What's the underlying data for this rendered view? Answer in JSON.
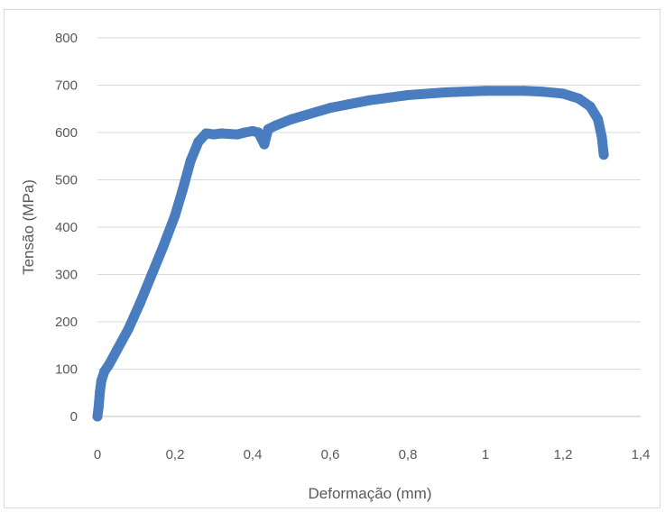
{
  "chart_data": {
    "type": "scatter",
    "title": "",
    "xlabel": "Deformação (mm)",
    "ylabel": "Tensão (MPa)",
    "xlim": [
      0,
      1.4
    ],
    "ylim": [
      0,
      800
    ],
    "x_ticks": [
      "0",
      "0,2",
      "0,4",
      "0,6",
      "0,8",
      "1",
      "1,2",
      "1,4"
    ],
    "y_ticks": [
      "0",
      "100",
      "200",
      "300",
      "400",
      "500",
      "600",
      "700",
      "800"
    ],
    "grid": "horizontal",
    "legend": "none",
    "series": [
      {
        "color": "#4a7dbf",
        "points": [
          [
            0.0,
            0
          ],
          [
            0.003,
            20
          ],
          [
            0.006,
            50
          ],
          [
            0.01,
            75
          ],
          [
            0.018,
            95
          ],
          [
            0.03,
            110
          ],
          [
            0.05,
            140
          ],
          [
            0.08,
            185
          ],
          [
            0.11,
            240
          ],
          [
            0.14,
            300
          ],
          [
            0.17,
            360
          ],
          [
            0.2,
            425
          ],
          [
            0.22,
            480
          ],
          [
            0.24,
            540
          ],
          [
            0.26,
            580
          ],
          [
            0.28,
            598
          ],
          [
            0.3,
            596
          ],
          [
            0.32,
            598
          ],
          [
            0.34,
            597
          ],
          [
            0.36,
            596
          ],
          [
            0.38,
            600
          ],
          [
            0.4,
            603
          ],
          [
            0.415,
            600
          ],
          [
            0.43,
            575
          ],
          [
            0.44,
            607
          ],
          [
            0.46,
            615
          ],
          [
            0.5,
            628
          ],
          [
            0.6,
            652
          ],
          [
            0.7,
            668
          ],
          [
            0.8,
            679
          ],
          [
            0.9,
            685
          ],
          [
            1.0,
            688
          ],
          [
            1.1,
            688
          ],
          [
            1.15,
            686
          ],
          [
            1.2,
            682
          ],
          [
            1.24,
            672
          ],
          [
            1.27,
            655
          ],
          [
            1.29,
            628
          ],
          [
            1.3,
            590
          ],
          [
            1.305,
            553
          ]
        ]
      }
    ]
  }
}
